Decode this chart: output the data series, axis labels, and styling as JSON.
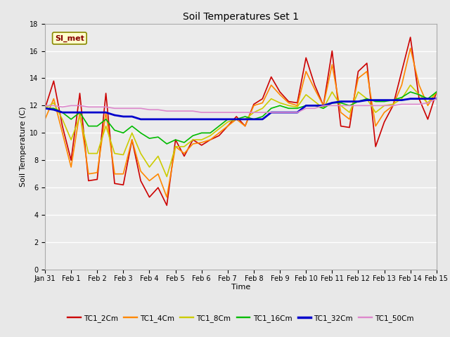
{
  "title": "Soil Temperatures Set 1",
  "xlabel": "Time",
  "ylabel": "Soil Temperature (C)",
  "ylim": [
    0,
    18
  ],
  "yticks": [
    0,
    2,
    4,
    6,
    8,
    10,
    12,
    14,
    16,
    18
  ],
  "x_labels": [
    "Jan 31",
    "Feb 1",
    "Feb 2",
    "Feb 3",
    "Feb 4",
    "Feb 5",
    "Feb 6",
    "Feb 7",
    "Feb 8",
    "Feb 9",
    "Feb 10",
    "Feb 11",
    "Feb 12",
    "Feb 13",
    "Feb 14",
    "Feb 15"
  ],
  "bg_color": "#e8e8e8",
  "plot_bg": "#ebebeb",
  "grid_color": "#ffffff",
  "annotation_text": "SI_met",
  "annotation_bg": "#ffffcc",
  "annotation_border": "#888800",
  "annotation_text_color": "#880000",
  "series_order": [
    "TC1_2Cm",
    "TC1_4Cm",
    "TC1_8Cm",
    "TC1_16Cm",
    "TC1_32Cm",
    "TC1_50Cm"
  ],
  "series": {
    "TC1_2Cm": {
      "color": "#cc0000",
      "lw": 1.2
    },
    "TC1_4Cm": {
      "color": "#ff8800",
      "lw": 1.2
    },
    "TC1_8Cm": {
      "color": "#cccc00",
      "lw": 1.2
    },
    "TC1_16Cm": {
      "color": "#00bb00",
      "lw": 1.2
    },
    "TC1_32Cm": {
      "color": "#0000cc",
      "lw": 2.0
    },
    "TC1_50Cm": {
      "color": "#dd88cc",
      "lw": 1.2
    }
  },
  "TC1_2Cm": [
    11.8,
    13.8,
    10.5,
    8.0,
    12.9,
    6.5,
    6.6,
    12.9,
    6.3,
    6.2,
    9.5,
    6.5,
    5.3,
    6.0,
    4.7,
    9.5,
    8.3,
    9.5,
    9.1,
    9.5,
    9.8,
    10.5,
    11.2,
    10.5,
    12.1,
    12.5,
    14.1,
    13.0,
    12.3,
    12.2,
    15.5,
    13.5,
    12.0,
    16.0,
    10.5,
    10.4,
    14.5,
    15.1,
    9.0,
    10.8,
    12.0,
    14.5,
    17.0,
    12.5,
    11.0,
    13.0
  ],
  "TC1_4Cm": [
    11.0,
    12.5,
    10.0,
    7.5,
    11.5,
    7.0,
    7.1,
    11.5,
    7.0,
    7.0,
    9.5,
    7.2,
    6.5,
    7.0,
    5.3,
    9.0,
    8.5,
    9.2,
    9.3,
    9.5,
    10.0,
    10.5,
    11.0,
    10.5,
    12.0,
    12.2,
    13.5,
    12.8,
    12.2,
    12.0,
    14.5,
    13.2,
    12.0,
    15.0,
    11.5,
    11.0,
    14.0,
    14.5,
    10.5,
    11.5,
    12.0,
    13.5,
    16.2,
    13.5,
    12.0,
    13.0
  ],
  "TC1_8Cm": [
    11.8,
    12.2,
    11.0,
    9.5,
    11.2,
    8.5,
    8.5,
    10.5,
    8.5,
    8.4,
    10.0,
    8.5,
    7.5,
    8.3,
    6.8,
    9.0,
    9.0,
    9.5,
    9.5,
    9.8,
    10.3,
    10.8,
    11.0,
    11.0,
    11.5,
    11.8,
    12.5,
    12.2,
    12.0,
    11.9,
    12.8,
    12.3,
    11.8,
    13.0,
    12.0,
    11.5,
    13.0,
    12.5,
    11.5,
    12.0,
    12.1,
    12.5,
    13.5,
    12.8,
    12.2,
    13.0
  ],
  "TC1_16Cm": [
    11.8,
    11.8,
    11.5,
    11.0,
    11.5,
    10.5,
    10.5,
    11.0,
    10.2,
    10.0,
    10.5,
    10.0,
    9.6,
    9.7,
    9.2,
    9.5,
    9.3,
    9.8,
    10.0,
    10.0,
    10.5,
    11.0,
    11.0,
    11.2,
    11.0,
    11.2,
    11.8,
    12.0,
    11.8,
    11.8,
    12.0,
    12.0,
    11.8,
    12.2,
    12.2,
    12.0,
    12.3,
    12.5,
    12.3,
    12.3,
    12.4,
    12.6,
    13.0,
    12.8,
    12.5,
    13.0
  ],
  "TC1_32Cm": [
    11.8,
    11.7,
    11.5,
    11.5,
    11.5,
    11.5,
    11.5,
    11.5,
    11.3,
    11.2,
    11.2,
    11.0,
    11.0,
    11.0,
    11.0,
    11.0,
    11.0,
    11.0,
    11.0,
    11.0,
    11.0,
    11.0,
    11.0,
    11.0,
    11.0,
    11.0,
    11.5,
    11.5,
    11.5,
    11.5,
    12.0,
    12.0,
    12.0,
    12.2,
    12.3,
    12.3,
    12.3,
    12.4,
    12.4,
    12.4,
    12.4,
    12.4,
    12.5,
    12.5,
    12.5,
    12.5
  ],
  "TC1_50Cm": [
    12.0,
    12.0,
    11.9,
    12.0,
    12.0,
    11.9,
    11.9,
    11.9,
    11.8,
    11.8,
    11.8,
    11.8,
    11.7,
    11.7,
    11.6,
    11.6,
    11.6,
    11.6,
    11.5,
    11.5,
    11.5,
    11.5,
    11.5,
    11.5,
    11.5,
    11.5,
    11.5,
    11.5,
    11.5,
    11.5,
    11.8,
    11.8,
    12.0,
    12.0,
    12.0,
    12.0,
    12.0,
    12.0,
    12.0,
    12.0,
    12.0,
    12.1,
    12.1,
    12.1,
    12.2,
    12.5
  ]
}
